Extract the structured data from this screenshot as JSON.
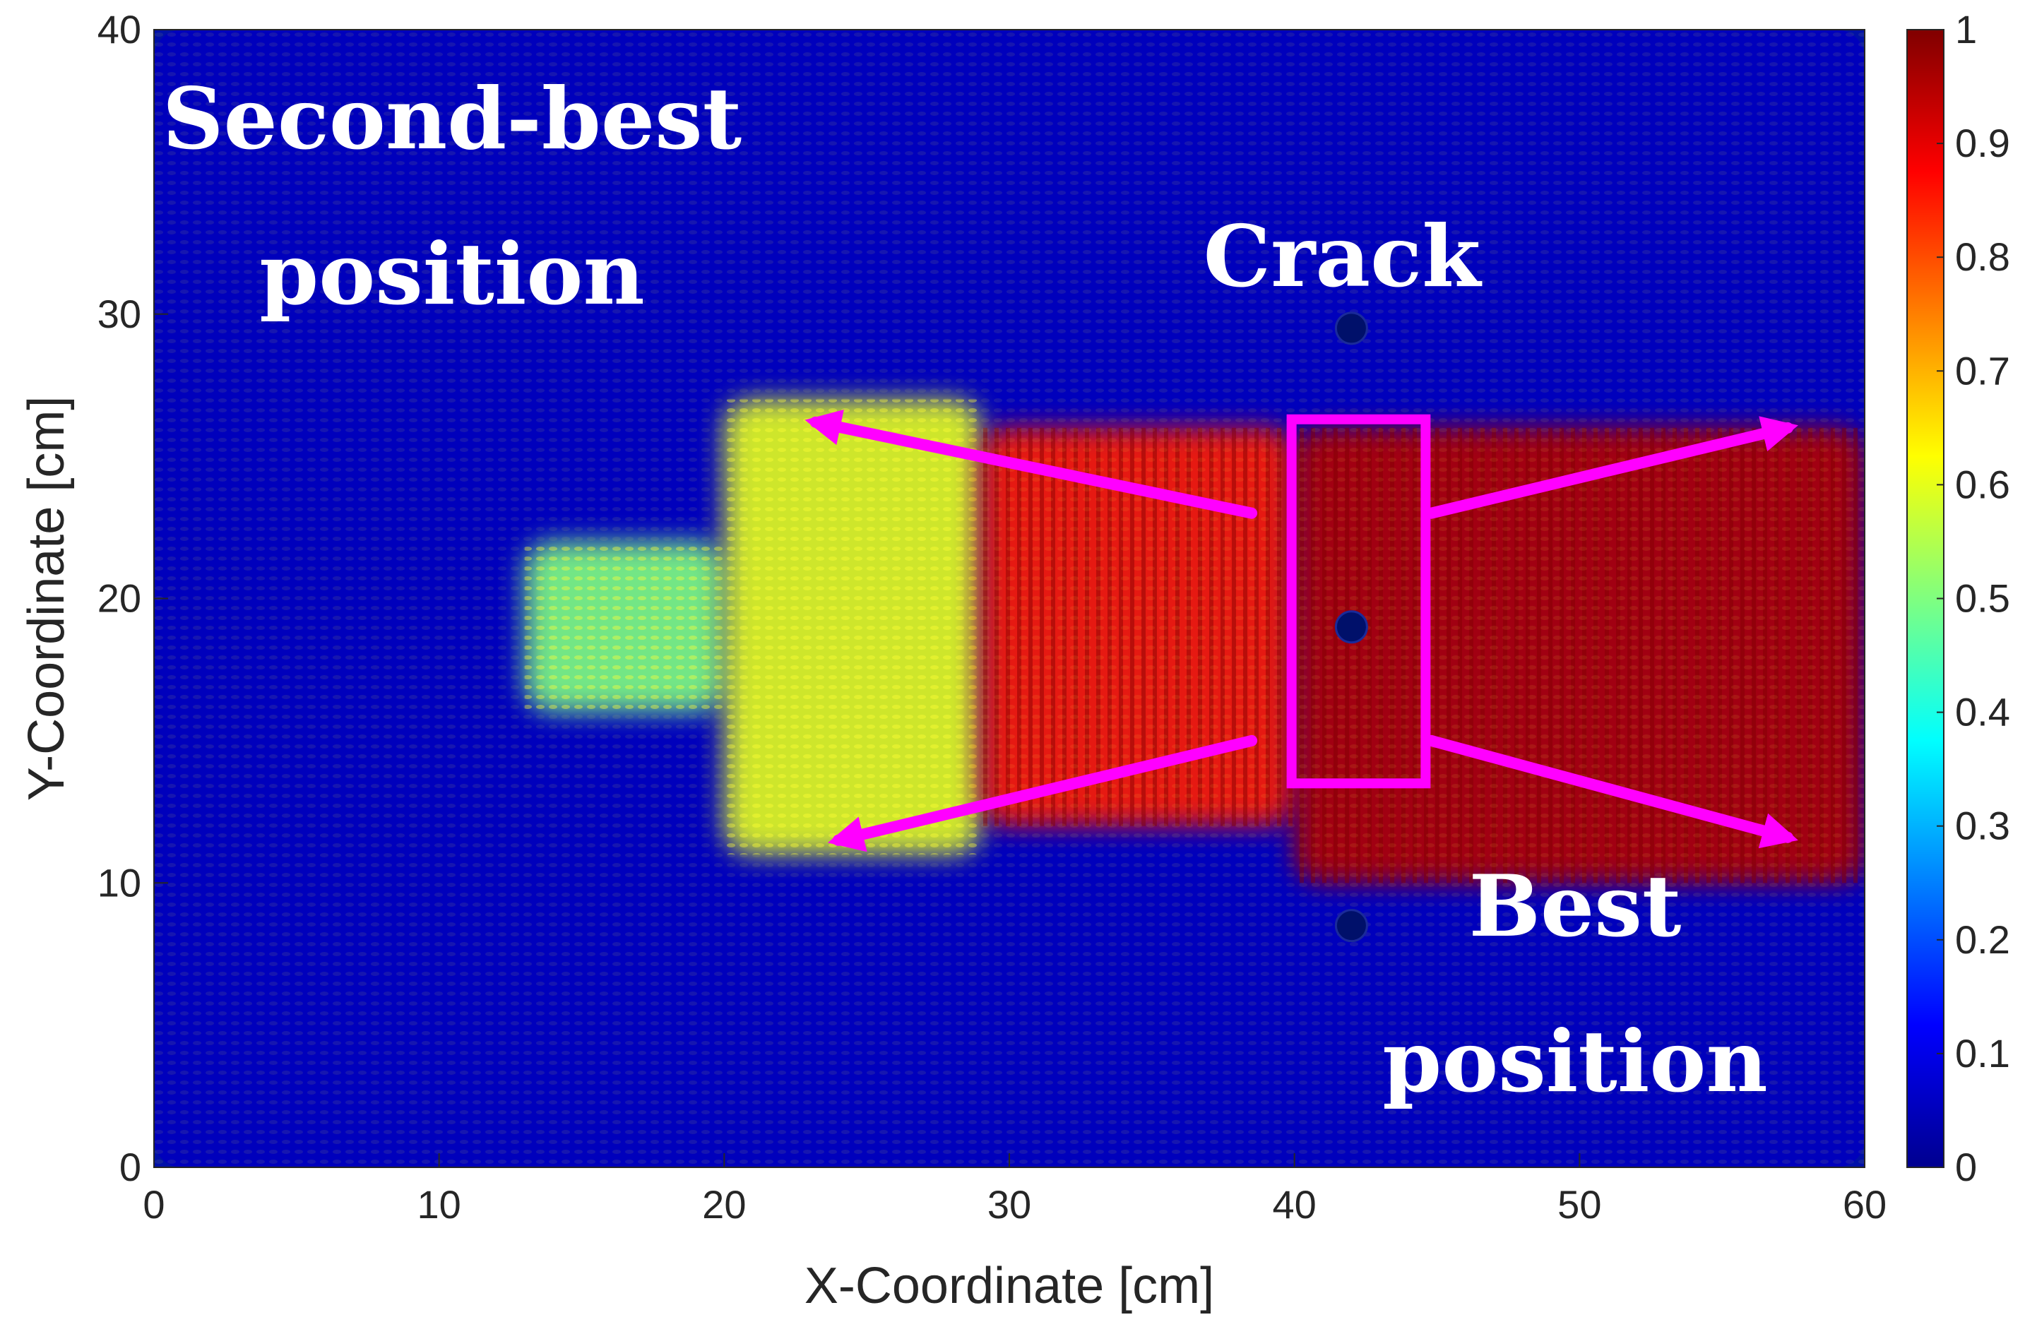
{
  "chart_data": {
    "type": "heatmap",
    "title": "",
    "xlabel": "X-Coordinate [cm]",
    "ylabel": "Y-Coordinate [cm]",
    "xlim": [
      0,
      60
    ],
    "ylim": [
      0,
      40
    ],
    "xticks": [
      "0",
      "10",
      "20",
      "30",
      "40",
      "50",
      "60"
    ],
    "yticks": [
      "0",
      "10",
      "20",
      "30",
      "40"
    ],
    "colorbar": {
      "colormap": "jet",
      "range": [
        0,
        1
      ],
      "ticks": [
        "0",
        "0.1",
        "0.2",
        "0.3",
        "0.4",
        "0.5",
        "0.6",
        "0.7",
        "0.8",
        "0.9",
        "1"
      ]
    },
    "grid": false,
    "regions": [
      {
        "x": [
          40,
          60
        ],
        "y": [
          10,
          26
        ],
        "level": 0.95
      },
      {
        "x": [
          29,
          40
        ],
        "y": [
          12,
          26
        ],
        "level": 0.85
      },
      {
        "x": [
          20,
          29
        ],
        "y": [
          11,
          27
        ],
        "level": 0.6
      },
      {
        "x": [
          13,
          20
        ],
        "y": [
          16,
          22
        ],
        "level": 0.5
      },
      {
        "x": [
          0,
          60
        ],
        "y": [
          0,
          40
        ],
        "level": 0.05
      }
    ],
    "crack_box": {
      "x": [
        39.9,
        44.6
      ],
      "y": [
        13.5,
        26.3
      ]
    },
    "sensors": [
      {
        "x": 42,
        "y": 29.5
      },
      {
        "x": 42,
        "y": 19
      },
      {
        "x": 42,
        "y": 8.5
      }
    ],
    "arrows": [
      {
        "from": [
          38.5,
          23
        ],
        "to": [
          23.2,
          26.2
        ]
      },
      {
        "from": [
          38.5,
          15
        ],
        "to": [
          24,
          11.5
        ]
      },
      {
        "from": [
          44.8,
          23
        ],
        "to": [
          57.3,
          26
        ]
      },
      {
        "from": [
          44.8,
          15
        ],
        "to": [
          57.3,
          11.6
        ]
      }
    ],
    "annotations": [
      {
        "id": "second-best",
        "lines": [
          "Second-best",
          "position"
        ]
      },
      {
        "id": "crack",
        "lines": [
          "Crack"
        ]
      },
      {
        "id": "best",
        "lines": [
          "Best",
          "position"
        ]
      }
    ],
    "colors": {
      "annotation_text": "#ffffff",
      "arrow": "#ff00ff",
      "crack_box": "#ff00ff"
    }
  }
}
